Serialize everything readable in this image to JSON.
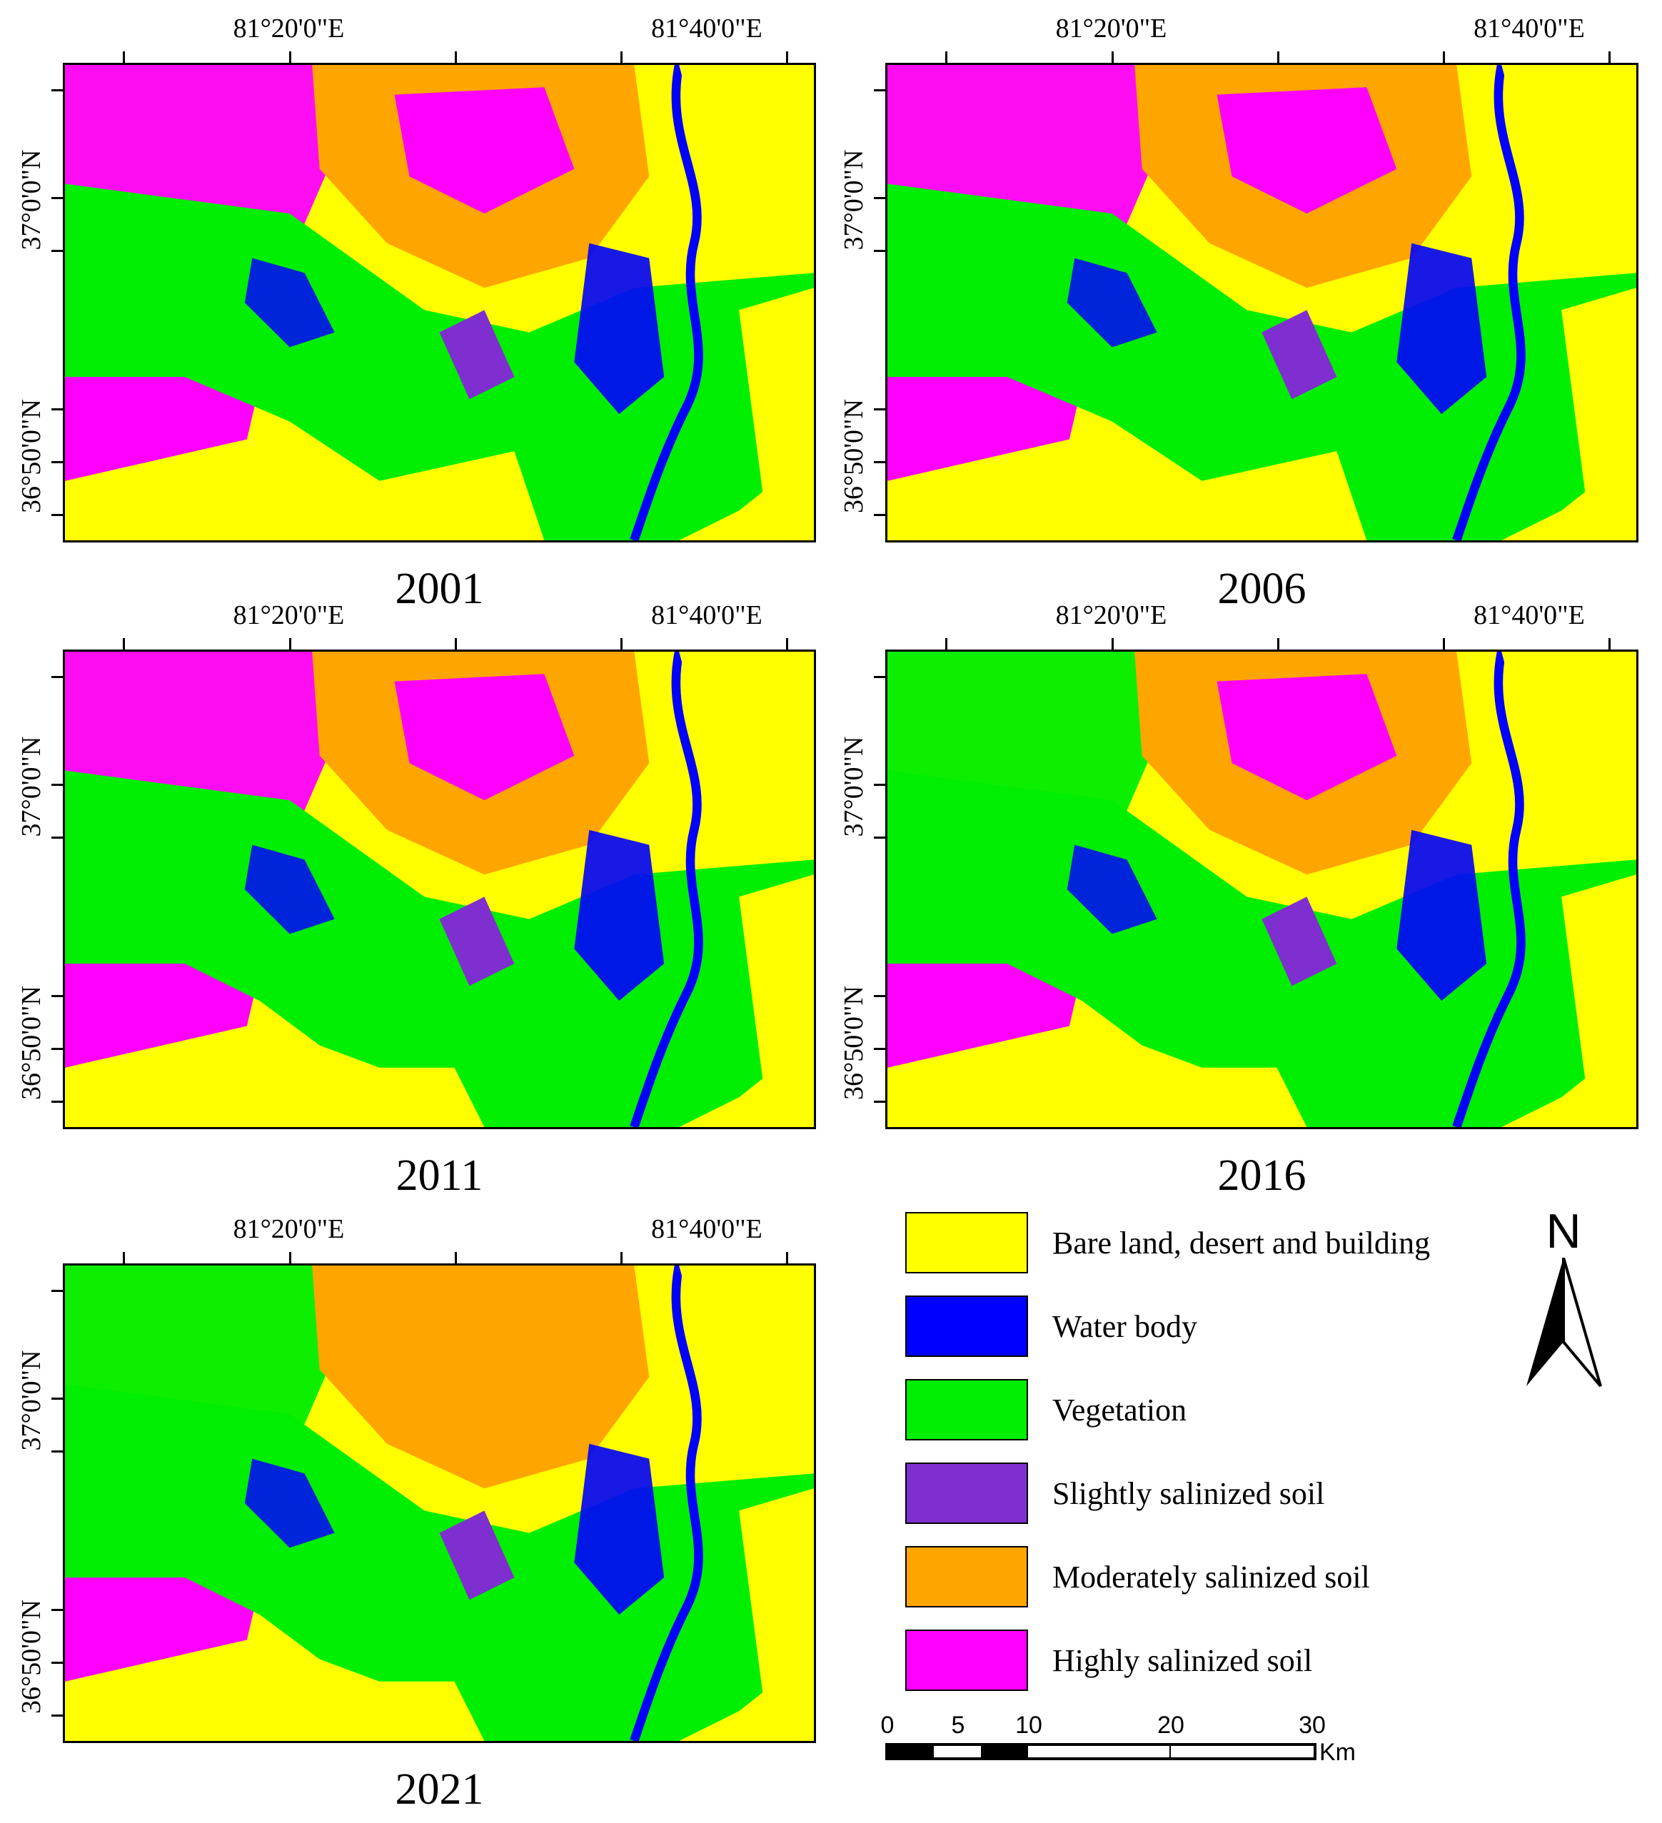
{
  "map": {
    "lon_labels": [
      "81°20'0\"E",
      "81°40'0\"E"
    ],
    "lat_labels": [
      "37°0'0\"N",
      "36°50'0\"N"
    ],
    "panels": [
      {
        "year": "2001"
      },
      {
        "year": "2006"
      },
      {
        "year": "2011"
      },
      {
        "year": "2016"
      },
      {
        "year": "2021"
      }
    ]
  },
  "legend": {
    "items": [
      {
        "label": "Bare land, desert and building",
        "color": "#ffff00"
      },
      {
        "label": "Water body",
        "color": "#0000ff"
      },
      {
        "label": "Vegetation",
        "color": "#00ee00"
      },
      {
        "label": "Slightly salinized soil",
        "color": "#7f2fcf"
      },
      {
        "label": "Moderately salinized soil",
        "color": "#ffa500"
      },
      {
        "label": "Highly salinized soil",
        "color": "#ff00ff"
      }
    ]
  },
  "north_arrow": {
    "label": "N",
    "icon": "north-arrow-icon"
  },
  "scale_bar": {
    "labels": [
      "0",
      "5",
      "10",
      "20",
      "30"
    ],
    "unit": "Km"
  }
}
